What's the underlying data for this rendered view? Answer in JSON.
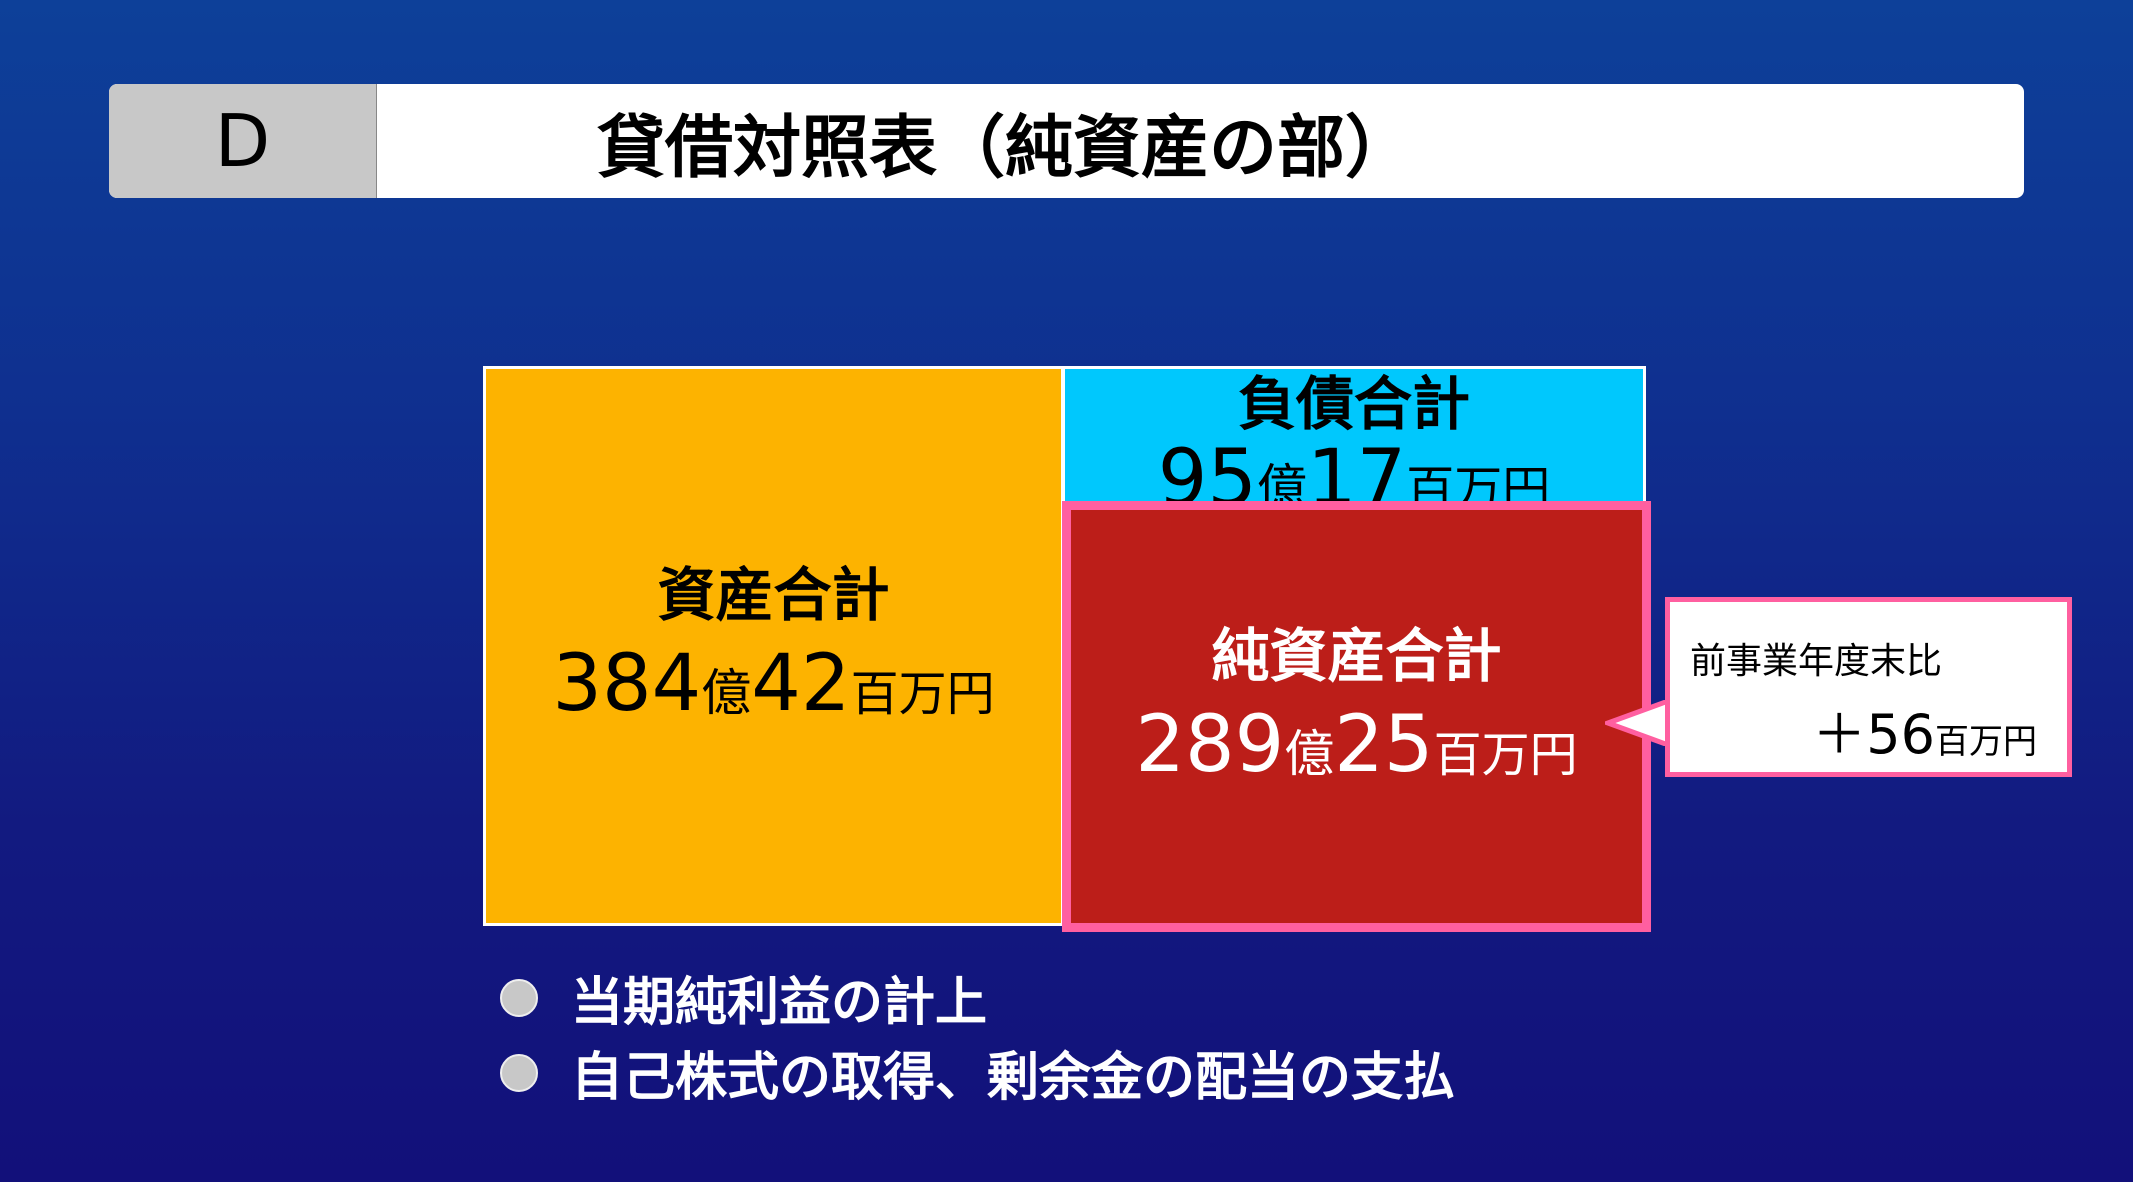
{
  "header": {
    "section_letter": "D",
    "title": "貸借対照表（純資産の部）"
  },
  "assets": {
    "label": "資産合計",
    "oku": "384",
    "oku_unit": "億",
    "million": "42",
    "million_unit": "百万円",
    "color": "#fdb300"
  },
  "liabilities": {
    "label": "負債合計",
    "oku": "95",
    "oku_unit": "億",
    "million": "17",
    "million_unit": "百万円",
    "color": "#00c8fd"
  },
  "net_assets": {
    "label": "純資産合計",
    "oku": "289",
    "oku_unit": "億",
    "million": "25",
    "million_unit": "百万円",
    "color": "#bc1e19",
    "highlight": "#ff5fa0"
  },
  "callout": {
    "label": "前事業年度末比",
    "value": "＋56",
    "unit": "百万円"
  },
  "bullets": [
    {
      "text": "当期純利益の計上"
    },
    {
      "text": "自己株式の取得、剰余金の配当の支払"
    }
  ]
}
